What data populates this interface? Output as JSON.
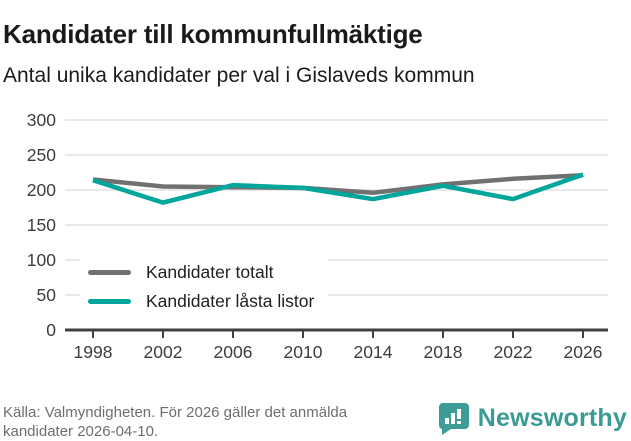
{
  "header": {
    "title": "Kandidater till kommunfullmäktige",
    "subtitle": "Antal unika kandidater per val i Gislaveds kommun"
  },
  "chart_data": {
    "type": "line",
    "x": [
      1998,
      2002,
      2006,
      2010,
      2014,
      2018,
      2022,
      2026
    ],
    "x_tick_labels": [
      "1998",
      "2002",
      "2006",
      "2010",
      "2014",
      "2018",
      "2022",
      "2026"
    ],
    "series": [
      {
        "name": "Kandidater totalt",
        "color": "#717171",
        "values": [
          215,
          205,
          204,
          203,
          196,
          208,
          216,
          221
        ]
      },
      {
        "name": "Kandidater låsta listor",
        "color": "#00a59b",
        "values": [
          214,
          182,
          207,
          203,
          187,
          206,
          187,
          222
        ]
      }
    ],
    "ylim": [
      0,
      300
    ],
    "yticks": [
      0,
      50,
      100,
      150,
      200,
      250,
      300
    ],
    "grid": true,
    "gridline_color": "#e2e2e2",
    "axis_color": "#404040",
    "tick_label_color": "#3d3d3d",
    "legend_position": "inside bottom-left",
    "title": "Kandidater till kommunfullmäktige",
    "xlabel": "",
    "ylabel": ""
  },
  "footer": {
    "source_line1": "Källa: Valmyndigheten. För 2026 gäller det anmälda",
    "source_line2": "kandidater 2026-04-10.",
    "brand": "Newsworthy",
    "brand_color": "#3a9a94",
    "icon_color": "#3d9c95"
  }
}
